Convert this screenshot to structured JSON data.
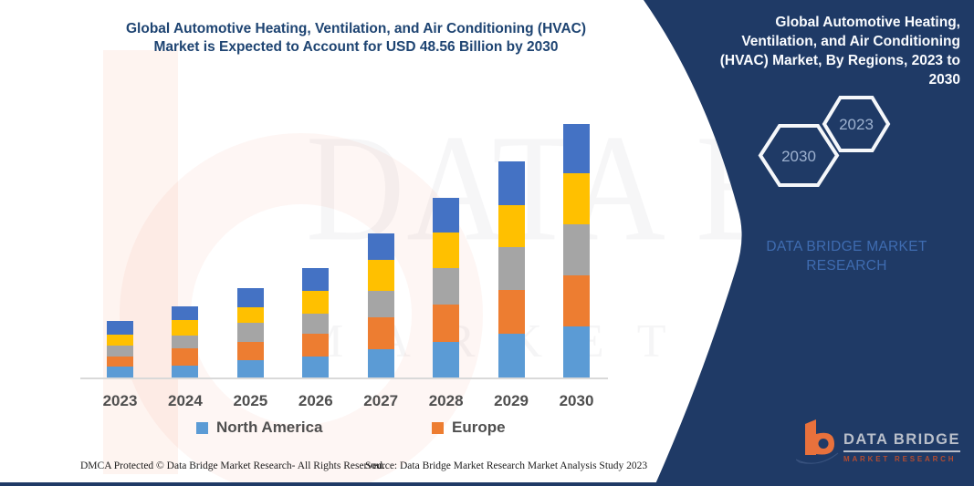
{
  "colors": {
    "panel_navy": "#1f3a66",
    "title_navy": "#1e4472",
    "axis_text": "#4f4f4f",
    "axis_line": "#d9d9d9",
    "brand_blue": "#3f6cb1",
    "hexagon_label": "#9db1cf",
    "logo_orange": "#e8713c",
    "logo_gray": "#b9bfca",
    "logo_red": "#b34c31",
    "watermark_pink": "#ED6A3C"
  },
  "main": {
    "title": "Global Automotive Heating, Ventilation, and Air Conditioning (HVAC)\nMarket is Expected to Account for USD 48.56 Billion by 2030"
  },
  "panel": {
    "title": "Global Automotive Heating,\nVentilation, and Air Conditioning\n(HVAC) Market, By Regions, 2023 to\n2030",
    "hexagons": [
      {
        "label": "2030"
      },
      {
        "label": "2023"
      }
    ],
    "brand_text": "DATA BRIDGE MARKET\nRESEARCH",
    "logo": {
      "name": "DATA BRIDGE",
      "subtitle": "MARKET RESEARCH",
      "mark": "b-swoosh-logo"
    }
  },
  "watermark": {
    "line1": "DATA BRIDGE",
    "line2": "MARKET RESEARCH"
  },
  "footer": {
    "left": "DMCA Protected © Data Bridge Market Research-  All Rights Reserved.",
    "right": "Source: Data Bridge Market Research  Market Analysis Study 2023"
  },
  "chart_data": {
    "type": "bar",
    "stacked": true,
    "unit": "USD Billion",
    "title": "Global Automotive Heating, Ventilation, and Air Conditioning (HVAC) Market, By Regions, 2023 to 2030",
    "categories": [
      "2023",
      "2024",
      "2025",
      "2026",
      "2027",
      "2028",
      "2029",
      "2030"
    ],
    "series": [
      {
        "name": "North America",
        "color": "#5B9BD5",
        "values": [
          2.1,
          2.3,
          3.3,
          4.0,
          5.4,
          6.8,
          8.4,
          9.8
        ]
      },
      {
        "name": "Europe",
        "color": "#ED7D31",
        "values": [
          1.9,
          3.3,
          3.5,
          4.4,
          6.1,
          7.2,
          8.4,
          9.8
        ]
      },
      {
        "name": "unlabeled-gray",
        "color": "#A5A5A5",
        "values": [
          2.1,
          2.4,
          3.7,
          3.8,
          5.2,
          7.0,
          8.2,
          9.8
        ]
      },
      {
        "name": "unlabeled-yellow",
        "color": "#FFC000",
        "values": [
          2.1,
          3.0,
          3.0,
          4.5,
          5.9,
          6.8,
          8.0,
          9.8
        ]
      },
      {
        "name": "unlabeled-darkblue",
        "color": "#4472C4",
        "values": [
          2.6,
          2.6,
          3.7,
          4.2,
          5.1,
          6.6,
          8.4,
          9.4
        ]
      }
    ],
    "totals": [
      10.8,
      13.6,
      17.2,
      20.9,
      27.7,
      34.4,
      41.4,
      48.6
    ],
    "highlight_total_2030": "USD 48.56 Billion",
    "legend_visible_series": [
      "North America",
      "Europe"
    ],
    "legend_position": "bottom",
    "ylim": [
      0,
      50
    ],
    "grid": false,
    "y_axis_visible": false
  }
}
